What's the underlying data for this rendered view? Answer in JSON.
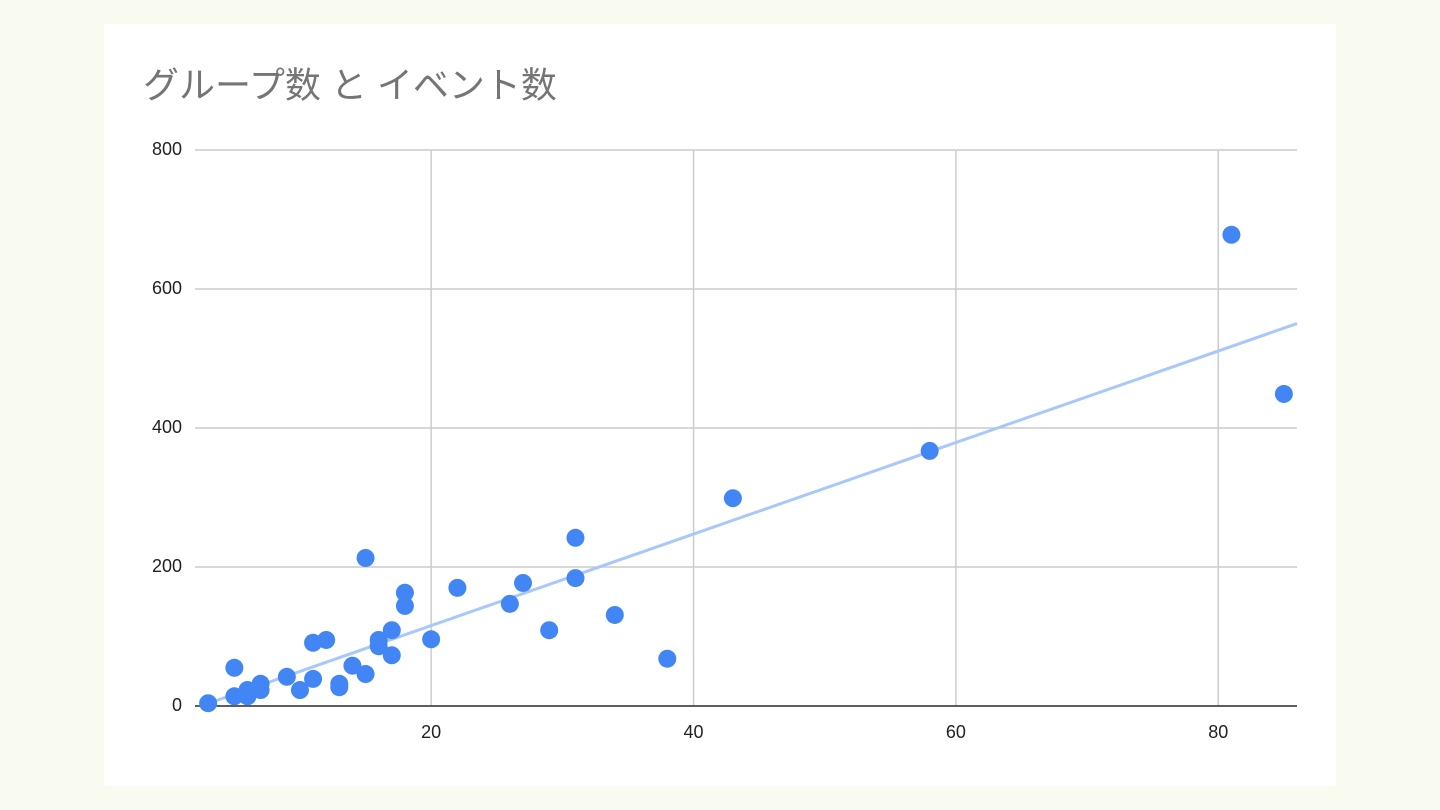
{
  "chart_data": {
    "type": "scatter",
    "title": "グループ数 と イベント数",
    "x": [
      3,
      5,
      5,
      6,
      6,
      7,
      7,
      9,
      10,
      11,
      11,
      12,
      13,
      13,
      14,
      15,
      15,
      16,
      16,
      17,
      17,
      18,
      18,
      20,
      22,
      26,
      27,
      29,
      31,
      31,
      34,
      38,
      43,
      58,
      81,
      85
    ],
    "values": [
      4,
      55,
      14,
      23,
      14,
      32,
      23,
      42,
      23,
      91,
      39,
      95,
      32,
      27,
      58,
      213,
      46,
      95,
      86,
      109,
      73,
      163,
      144,
      96,
      170,
      147,
      177,
      109,
      242,
      184,
      131,
      68,
      299,
      367,
      678,
      449
    ],
    "color": "#4285f4",
    "trendline": true,
    "trendline_color": "#a8c7fa",
    "xlim": [
      2,
      86
    ],
    "xticks": [
      20,
      40,
      60,
      80
    ],
    "ylim": [
      0,
      800
    ],
    "yticks": [
      0,
      200,
      400,
      600,
      800
    ],
    "grid": true
  }
}
